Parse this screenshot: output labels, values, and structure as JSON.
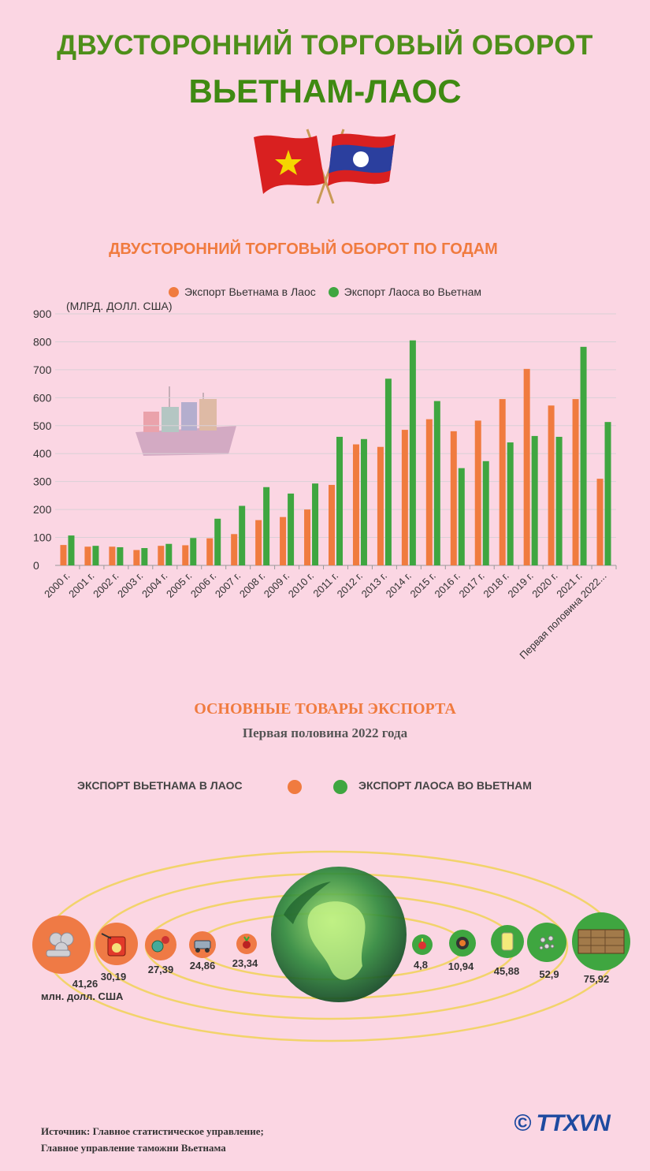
{
  "header": {
    "title_line1": "ДВУСТОРОННИЙ ТОРГОВЫЙ ОБОРОТ",
    "title_line2": "ВЬЕТНАМ-ЛАОС"
  },
  "colors": {
    "vietnam": "#f07b3f",
    "laos": "#3fa640",
    "title_green": "#4e8f1a",
    "orange_title": "#f07b3f"
  },
  "chart_data": {
    "type": "bar",
    "title": "ДВУСТОРОННИЙ ТОРГОВЫЙ ОБОРОТ ПО ГОДАМ",
    "ylabel": "(МЛРД. ДОЛЛ. США)",
    "ylim": [
      0,
      900
    ],
    "yticks": [
      "0",
      "100",
      "200",
      "300",
      "400",
      "500",
      "600",
      "700",
      "800",
      "900"
    ],
    "legend_position": "top",
    "grid": true,
    "categories": [
      "2000 г.",
      "2001 г.",
      "2002 г.",
      "2003 г.",
      "2004 г.",
      "2005 г.",
      "2006 г.",
      "2007 г.",
      "2008 г.",
      "2009 г.",
      "2010 г.",
      "2011 г.",
      "2012 г.",
      "2013 г.",
      "2014 г.",
      "2015 г.",
      "2016 г.",
      "2017 г.",
      "2018 г.",
      "2019 г.",
      "2020 г.",
      "2021 г.",
      "Первая половина 2022..."
    ],
    "series": [
      {
        "name": "Экспорт Вьетнама в Лаос",
        "color": "#f07b3f",
        "values": [
          73,
          67,
          67,
          55,
          70,
          72,
          97,
          112,
          162,
          173,
          200,
          288,
          433,
          424,
          485,
          523,
          480,
          518,
          595,
          703,
          572,
          595,
          310
        ]
      },
      {
        "name": "Экспорт Лаоса во Вьетнам",
        "color": "#3fa640",
        "values": [
          107,
          70,
          65,
          62,
          77,
          98,
          167,
          213,
          280,
          257,
          293,
          460,
          452,
          668,
          805,
          588,
          348,
          373,
          440,
          463,
          460,
          782,
          513
        ]
      }
    ]
  },
  "exports": {
    "title": "ОСНОВНЫЕ ТОВАРЫ ЭКСПОРТА",
    "subtitle": "Первая половина 2022 года",
    "legend_vietnam": "ЭКСПОРТ ВЬЕТНАМА В ЛАОС",
    "legend_laos": "ЭКСПОРТ ЛАОСА ВО ВЬЕТНАМ",
    "unit": "млн. долл. США",
    "vietnam_items": [
      {
        "value": "41,26",
        "icon": "steel-pipes-icon"
      },
      {
        "value": "30,19",
        "icon": "fuel-can-icon"
      },
      {
        "value": "27,39",
        "icon": "machinery-icon"
      },
      {
        "value": "24,86",
        "icon": "vehicle-icon"
      },
      {
        "value": "23,34",
        "icon": "vegetable-icon"
      }
    ],
    "laos_items": [
      {
        "value": "4,8",
        "icon": "fruit-icon"
      },
      {
        "value": "10,94",
        "icon": "rubber-icon"
      },
      {
        "value": "45,88",
        "icon": "fertilizer-bag-icon"
      },
      {
        "value": "52,9",
        "icon": "ore-icon"
      },
      {
        "value": "75,92",
        "icon": "timber-icon"
      }
    ]
  },
  "footer": {
    "source_line1": "Источник: Главное статистическое управление;",
    "source_line2": "Главное управление таможни Вьетнама",
    "logo": "© TTXVN"
  }
}
